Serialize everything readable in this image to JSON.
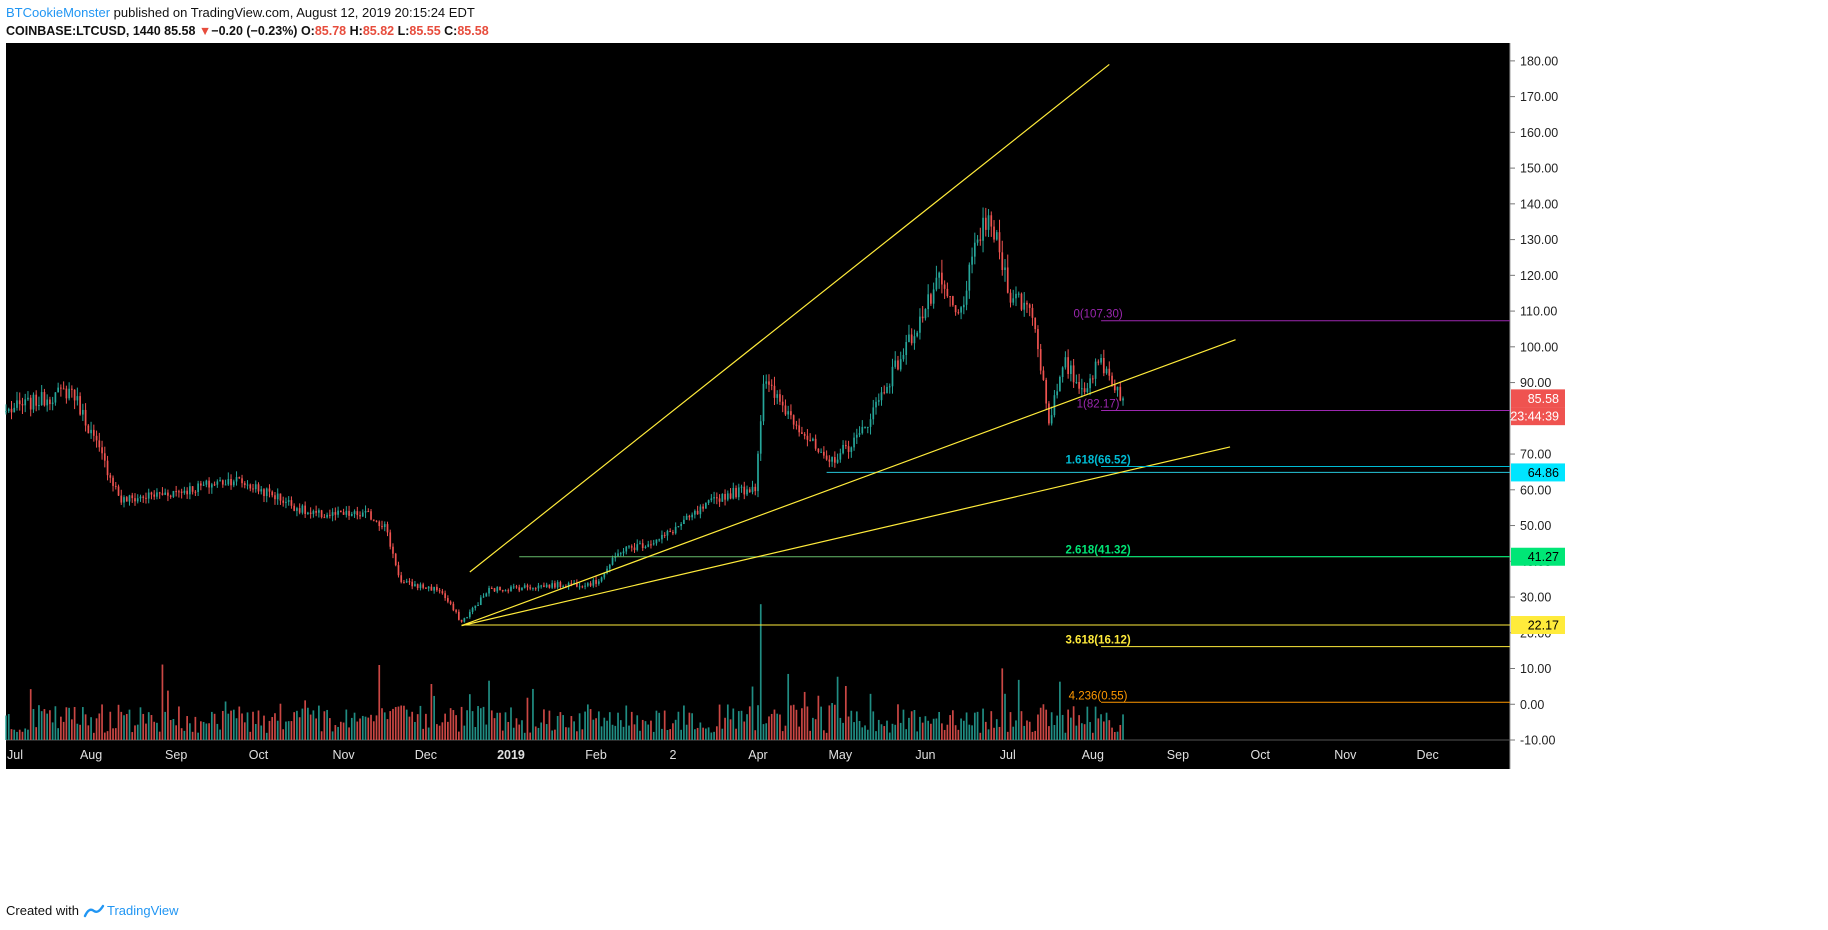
{
  "header": {
    "author": "BTCookieMonster",
    "published_text": " published on TradingView.com, August 12, 2019 20:15:24 EDT",
    "symbol": "COINBASE:LTCUSD, 1440",
    "last": "85.58",
    "change_arrow": "▼",
    "change": "−0.20 (−0.23%)",
    "o_label": "O:",
    "o_val": "85.78",
    "h_label": "H:",
    "h_val": "85.82",
    "l_label": "L:",
    "l_val": "85.55",
    "c_label": "C:",
    "c_val": "85.58"
  },
  "footer": {
    "created_with": "Created with",
    "brand": "TradingView"
  },
  "colors": {
    "background": "#000000",
    "up": "#26a69a",
    "down": "#ef5350",
    "trendline": "#ffeb3b",
    "fib_0": "#9c27b0",
    "fib_1618": "#00bcd4",
    "fib_2618": "#00e676",
    "fib_3618": "#ffeb3b",
    "fib_4236": "#ff9800"
  },
  "chart_data": {
    "type": "candlestick",
    "symbol": "COINBASE:LTCUSD",
    "timeframe": "1440",
    "ylim": [
      -10,
      185
    ],
    "y_ticks": [
      "180.00",
      "170.00",
      "160.00",
      "150.00",
      "140.00",
      "130.00",
      "120.00",
      "110.00",
      "100.00",
      "90.00",
      "80.00",
      "70.00",
      "60.00",
      "50.00",
      "40.00",
      "30.00",
      "20.00",
      "10.00",
      "0.00",
      "-10.00"
    ],
    "x_tick_labels": [
      "Jul",
      "Aug",
      "Sep",
      "Oct",
      "Nov",
      "Dec",
      "2019",
      "Feb",
      "2",
      "Apr",
      "May",
      "Jun",
      "Jul",
      "Aug",
      "Sep",
      "Oct",
      "Nov",
      "Dec"
    ],
    "x_range": [
      "2018-07-01",
      "2019-12-31"
    ],
    "price_anchors": [
      {
        "date": "2018-07-01",
        "close": 82
      },
      {
        "date": "2018-07-25",
        "close": 88
      },
      {
        "date": "2018-08-12",
        "close": 57
      },
      {
        "date": "2018-09-05",
        "close": 60
      },
      {
        "date": "2018-09-22",
        "close": 63
      },
      {
        "date": "2018-10-08",
        "close": 58
      },
      {
        "date": "2018-10-20",
        "close": 53
      },
      {
        "date": "2018-11-10",
        "close": 53
      },
      {
        "date": "2018-11-16",
        "close": 50
      },
      {
        "date": "2018-11-22",
        "close": 34
      },
      {
        "date": "2018-12-06",
        "close": 32
      },
      {
        "date": "2018-12-14",
        "close": 23
      },
      {
        "date": "2018-12-24",
        "close": 32
      },
      {
        "date": "2019-01-10",
        "close": 33
      },
      {
        "date": "2019-02-01",
        "close": 34
      },
      {
        "date": "2019-02-10",
        "close": 43
      },
      {
        "date": "2019-02-24",
        "close": 46
      },
      {
        "date": "2019-03-18",
        "close": 58
      },
      {
        "date": "2019-03-31",
        "close": 61
      },
      {
        "date": "2019-04-03",
        "close": 90
      },
      {
        "date": "2019-04-16",
        "close": 78
      },
      {
        "date": "2019-04-26",
        "close": 67
      },
      {
        "date": "2019-05-08",
        "close": 75
      },
      {
        "date": "2019-05-25",
        "close": 100
      },
      {
        "date": "2019-06-06",
        "close": 118
      },
      {
        "date": "2019-06-13",
        "close": 108
      },
      {
        "date": "2019-06-22",
        "close": 135
      },
      {
        "date": "2019-06-26",
        "close": 132
      },
      {
        "date": "2019-07-02",
        "close": 115
      },
      {
        "date": "2019-07-10",
        "close": 110
      },
      {
        "date": "2019-07-16",
        "close": 80
      },
      {
        "date": "2019-07-22",
        "close": 95
      },
      {
        "date": "2019-07-28",
        "close": 88
      },
      {
        "date": "2019-08-04",
        "close": 96
      },
      {
        "date": "2019-08-12",
        "close": 85.58
      }
    ],
    "volume_spike": {
      "date": "2019-04-02"
    },
    "trendlines": [
      {
        "from": {
          "date": "2018-12-17",
          "price": 37
        },
        "to": {
          "date": "2019-08-07",
          "price": 179
        }
      },
      {
        "from": {
          "date": "2018-12-14",
          "price": 22
        },
        "to": {
          "date": "2019-09-22",
          "price": 102
        }
      },
      {
        "from": {
          "date": "2018-12-14",
          "price": 22
        },
        "to": {
          "date": "2019-09-20",
          "price": 72
        }
      }
    ],
    "horizontal_levels": [
      {
        "price": 64.86,
        "start": "2019-04-26"
      },
      {
        "price": 41.27,
        "start": "2019-01-04"
      },
      {
        "price": 22.17,
        "start": "2018-12-14"
      }
    ],
    "fib_levels": [
      {
        "label": "0(107.30)",
        "ratio": "0",
        "price": 107.3,
        "color": "#9c27b0"
      },
      {
        "label": "1(82.17)",
        "ratio": "1",
        "price": 82.17,
        "color": "#9c27b0"
      },
      {
        "label": "1.618(66.52)",
        "ratio": "1.618",
        "price": 66.52,
        "color": "#00bcd4"
      },
      {
        "label": "2.618(41.32)",
        "ratio": "2.618",
        "price": 41.32,
        "color": "#00e676"
      },
      {
        "label": "3.618(16.12)",
        "ratio": "3.618",
        "price": 16.12,
        "color": "#ffeb3b"
      },
      {
        "label": "4.236(0.55)",
        "ratio": "4.236",
        "price": 0.55,
        "color": "#ff9800"
      }
    ],
    "price_badges": [
      {
        "text": "85.58",
        "price": 85.58,
        "bg": "#ef5350",
        "fg": "#ffffff"
      },
      {
        "text": "23:44:39",
        "price": 80.6,
        "bg": "#ef5350",
        "fg": "#ffffff"
      },
      {
        "text": "64.86",
        "price": 64.86,
        "bg": "#00e5ff",
        "fg": "#000000"
      },
      {
        "text": "41.27",
        "price": 41.27,
        "bg": "#00e676",
        "fg": "#000000"
      },
      {
        "text": "22.17",
        "price": 22.17,
        "bg": "#ffeb3b",
        "fg": "#000000"
      }
    ]
  }
}
